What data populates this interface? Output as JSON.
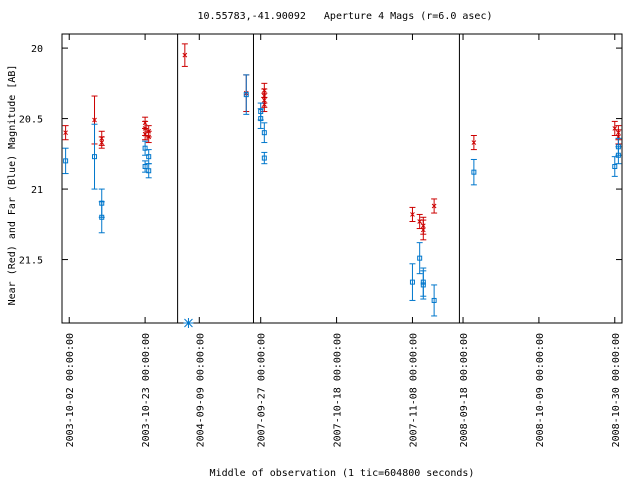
{
  "chart_data": {
    "type": "scatter",
    "title": "10.55783,-41.90092   Aperture 4 Mags (r=6.0 asec)",
    "xlabel": "Middle of observation (1 tic=604800 seconds)",
    "ylabel": "Near (Red) and Far (Blue) Magnitude [AB]",
    "y_inverted": true,
    "ylim": [
      21.95,
      19.9
    ],
    "y_ticks": [
      "20",
      "20.5",
      "21",
      "21.5"
    ],
    "x_ticks": [
      "2003-10-02 00:00:00",
      "2003-10-23 00:00:00",
      "2004-09-09 00:00:00",
      "2007-09-27 00:00:00",
      "2007-10-18 00:00:00",
      "2007-11-08 00:00:00",
      "2008-09-18 00:00:00",
      "2008-10-09 00:00:00",
      "2008-10-30 00:00:00"
    ],
    "panels": [
      {
        "x_start": "2003-09-30",
        "x_end": "2003-11-01",
        "series": [
          {
            "band": "near",
            "color": "#cc0000",
            "marker": "x",
            "points": [
              {
                "x": "2003-10-01",
                "y": 20.6,
                "err": 0.05
              },
              {
                "x": "2003-10-09",
                "y": 20.51,
                "err": 0.17
              },
              {
                "x": "2003-10-11",
                "y": 20.64,
                "err": 0.05
              },
              {
                "x": "2003-10-11",
                "y": 20.67,
                "err": 0.04
              },
              {
                "x": "2003-10-23",
                "y": 20.53,
                "err": 0.04
              },
              {
                "x": "2003-10-23",
                "y": 20.57,
                "err": 0.05
              },
              {
                "x": "2003-10-23",
                "y": 20.61,
                "err": 0.04
              },
              {
                "x": "2003-10-24",
                "y": 20.59,
                "err": 0.04
              },
              {
                "x": "2003-10-24",
                "y": 20.63,
                "err": 0.04
              }
            ]
          },
          {
            "band": "far",
            "color": "#0077cc",
            "marker": "square",
            "points": [
              {
                "x": "2003-10-01",
                "y": 20.8,
                "err": 0.09
              },
              {
                "x": "2003-10-09",
                "y": 20.77,
                "err": 0.23
              },
              {
                "x": "2003-10-11",
                "y": 21.1,
                "err": 0.1
              },
              {
                "x": "2003-10-11",
                "y": 21.2,
                "err": 0.11
              },
              {
                "x": "2003-10-23",
                "y": 20.71,
                "err": 0.05
              },
              {
                "x": "2003-10-23",
                "y": 20.84,
                "err": 0.04
              },
              {
                "x": "2003-10-24",
                "y": 20.77,
                "err": 0.05
              },
              {
                "x": "2003-10-24",
                "y": 20.87,
                "err": 0.05
              }
            ]
          }
        ]
      },
      {
        "x_start": "2004-09-03",
        "x_end": "2004-09-24",
        "series": [
          {
            "band": "near",
            "color": "#cc0000",
            "marker": "x",
            "points": [
              {
                "x": "2004-09-05",
                "y": 20.05,
                "err": 0.08
              },
              {
                "x": "2004-09-22",
                "y": 20.32,
                "err": 0.13
              }
            ]
          },
          {
            "band": "far",
            "color": "#0077cc",
            "marker": "square",
            "points": [
              {
                "x": "2004-09-22",
                "y": 20.33,
                "err": 0.14
              }
            ]
          }
        ],
        "special": {
          "x": "2004-09-06",
          "y": "bottom",
          "marker": "asterisk",
          "color": "#0077cc"
        }
      },
      {
        "x_start": "2007-09-25",
        "x_end": "2007-11-21",
        "series": [
          {
            "band": "near",
            "color": "#cc0000",
            "marker": "x",
            "points": [
              {
                "x": "2007-09-28",
                "y": 20.3,
                "err": 0.05
              },
              {
                "x": "2007-09-28",
                "y": 20.34,
                "err": 0.05
              },
              {
                "x": "2007-09-28",
                "y": 20.37,
                "err": 0.05
              },
              {
                "x": "2007-09-28",
                "y": 20.4,
                "err": 0.05
              },
              {
                "x": "2007-11-08",
                "y": 21.18,
                "err": 0.05
              },
              {
                "x": "2007-11-10",
                "y": 21.23,
                "err": 0.05
              },
              {
                "x": "2007-11-11",
                "y": 21.26,
                "err": 0.06
              },
              {
                "x": "2007-11-11",
                "y": 21.29,
                "err": 0.07
              },
              {
                "x": "2007-11-14",
                "y": 21.12,
                "err": 0.05
              }
            ]
          },
          {
            "band": "far",
            "color": "#0077cc",
            "marker": "square",
            "points": [
              {
                "x": "2007-09-27",
                "y": 20.45,
                "err": 0.06
              },
              {
                "x": "2007-09-27",
                "y": 20.5,
                "err": 0.07
              },
              {
                "x": "2007-09-28",
                "y": 20.6,
                "err": 0.07
              },
              {
                "x": "2007-09-28",
                "y": 20.78,
                "err": 0.04
              },
              {
                "x": "2007-11-08",
                "y": 21.66,
                "err": 0.13
              },
              {
                "x": "2007-11-10",
                "y": 21.49,
                "err": 0.11
              },
              {
                "x": "2007-11-11",
                "y": 21.66,
                "err": 0.1
              },
              {
                "x": "2007-11-11",
                "y": 21.68,
                "err": 0.1
              },
              {
                "x": "2007-11-14",
                "y": 21.79,
                "err": 0.11
              }
            ]
          }
        ]
      },
      {
        "x_start": "2008-09-17",
        "x_end": "2008-11-01",
        "series": [
          {
            "band": "near",
            "color": "#cc0000",
            "marker": "x",
            "points": [
              {
                "x": "2008-09-21",
                "y": 20.67,
                "err": 0.05
              },
              {
                "x": "2008-10-30",
                "y": 20.57,
                "err": 0.05
              },
              {
                "x": "2008-10-31",
                "y": 20.6,
                "err": 0.05
              },
              {
                "x": "2008-10-31",
                "y": 20.63,
                "err": 0.05
              }
            ]
          },
          {
            "band": "far",
            "color": "#0077cc",
            "marker": "square",
            "points": [
              {
                "x": "2008-09-21",
                "y": 20.88,
                "err": 0.09
              },
              {
                "x": "2008-10-30",
                "y": 20.84,
                "err": 0.07
              },
              {
                "x": "2008-10-31",
                "y": 20.76,
                "err": 0.06
              },
              {
                "x": "2008-10-31",
                "y": 20.7,
                "err": 0.06
              }
            ]
          }
        ]
      }
    ]
  }
}
